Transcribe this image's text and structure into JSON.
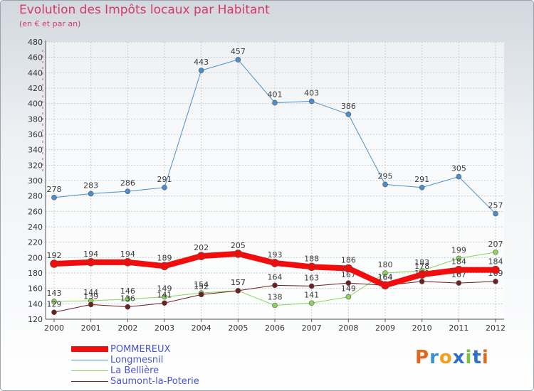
{
  "title": "Evolution des Impôts locaux par Habitant",
  "subtitle": "(en € et par an)",
  "brand": {
    "letters": [
      "P",
      "r",
      "o",
      "x",
      "i",
      "t",
      "i"
    ],
    "colors": [
      "#e2671f",
      "#3a8fd6",
      "#f0a01c",
      "#2e70c8",
      "#7cc242",
      "#2e70c8",
      "#e2671f"
    ]
  },
  "chart_data": {
    "type": "line",
    "x": [
      2000,
      2001,
      2002,
      2003,
      2004,
      2005,
      2006,
      2007,
      2008,
      2009,
      2010,
      2011,
      2012
    ],
    "ylim": [
      120,
      480
    ],
    "yticks": [
      120,
      140,
      160,
      180,
      200,
      220,
      240,
      260,
      280,
      300,
      320,
      340,
      360,
      380,
      400,
      420,
      440,
      460,
      480
    ],
    "grid": true,
    "legend_position": "bottom-left",
    "series": [
      {
        "name": "Longmesnil",
        "color": "#4d8fce",
        "width": 1,
        "marker": 3.5,
        "values": [
          278,
          283,
          286,
          291,
          443,
          457,
          401,
          403,
          386,
          295,
          291,
          305,
          257
        ],
        "labels": [
          "278",
          "283",
          "286",
          "291",
          "443",
          "457",
          "401",
          "403",
          "386",
          "295",
          "291",
          "305",
          "257"
        ]
      },
      {
        "name": "La Bellière",
        "color": "#8cd45a",
        "width": 1,
        "marker": 3.5,
        "values": [
          143,
          144,
          146,
          149,
          154,
          157,
          138,
          141,
          149,
          180,
          183,
          199,
          207
        ],
        "labels": [
          "143",
          "144",
          "146",
          "149",
          "154",
          "157",
          "138",
          "141",
          "149",
          "180",
          "183",
          "199",
          "207"
        ]
      },
      {
        "name": "Saumont-la-Poterie",
        "color": "#6e1f1f",
        "width": 1,
        "marker": 3.5,
        "values": [
          129,
          139,
          136,
          141,
          152,
          157,
          164,
          163,
          167,
          164,
          169,
          167,
          169
        ],
        "labels": [
          "129",
          "139",
          "136",
          "141",
          "152",
          "157",
          "164",
          "163",
          "167",
          "164",
          "169",
          "167",
          "169"
        ]
      },
      {
        "name": "POMMEREUX",
        "color": "#f20c0c",
        "width": 8,
        "marker": 5.5,
        "values": [
          192,
          194,
          194,
          189,
          202,
          205,
          193,
          188,
          186,
          164,
          178,
          184,
          184
        ],
        "labels": [
          "192",
          "194",
          "194",
          "189",
          "202",
          "205",
          "193",
          "188",
          "186",
          "164",
          "178",
          "184",
          "184"
        ]
      }
    ],
    "legend": [
      {
        "name": "POMMEREUX",
        "color": "#f20c0c",
        "width": 8
      },
      {
        "name": "Longmesnil",
        "color": "#4d8fce",
        "width": 1
      },
      {
        "name": "La Bellière",
        "color": "#8cd45a",
        "width": 1
      },
      {
        "name": "Saumont-la-Poterie",
        "color": "#6e1f1f",
        "width": 1
      }
    ]
  }
}
